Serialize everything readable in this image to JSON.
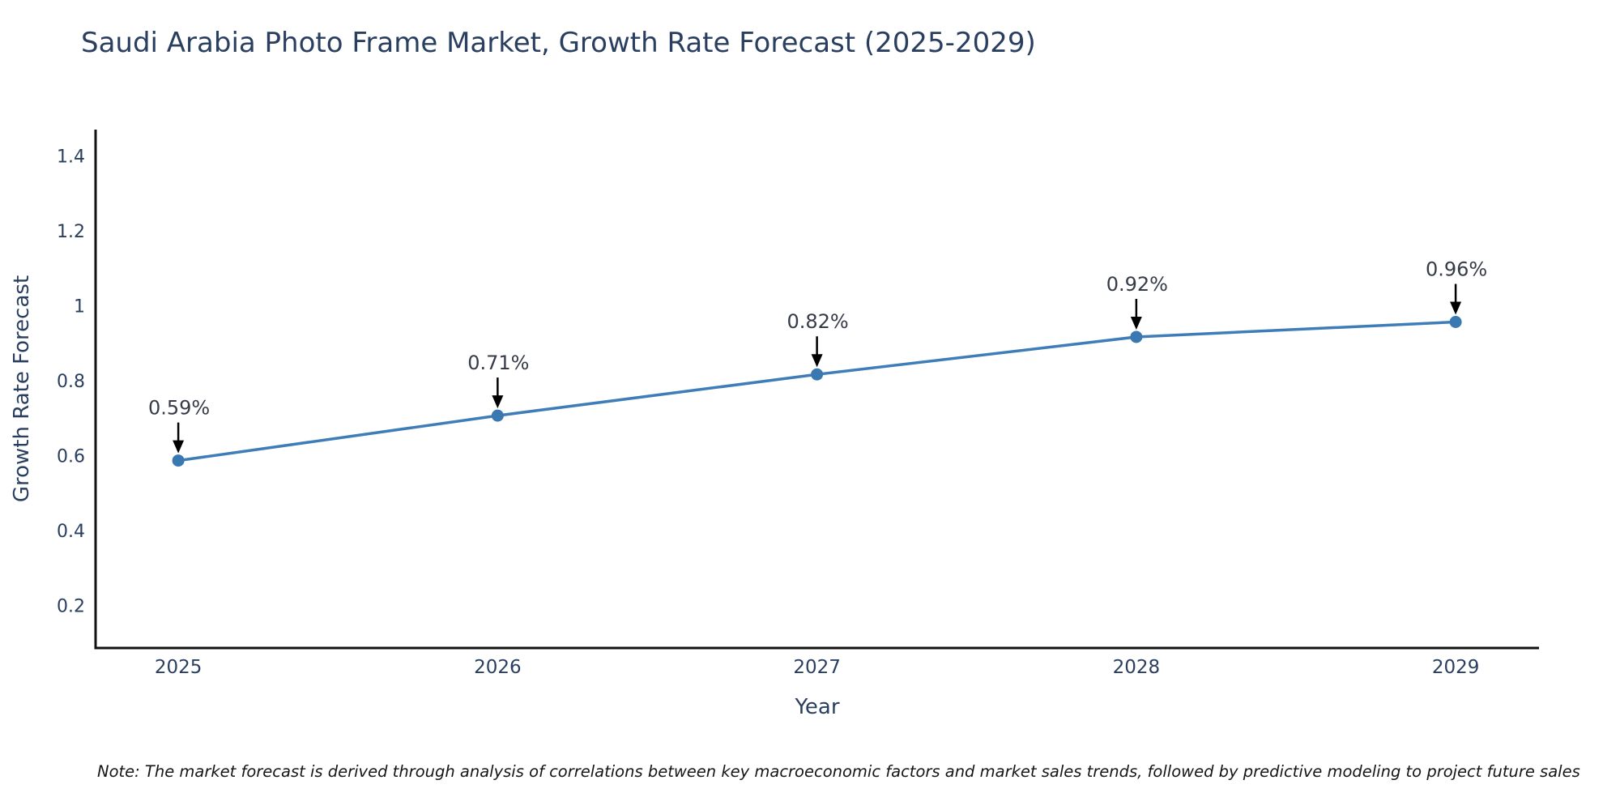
{
  "title": "Saudi Arabia Photo Frame Market, Growth Rate Forecast (2025-2029)",
  "note": "Note: The market forecast is derived through analysis of correlations between key macroeconomic factors and market sales trends, followed by predictive modeling to project future sales",
  "chart_data": {
    "type": "line",
    "title": "Saudi Arabia Photo Frame Market, Growth Rate Forecast (2025-2029)",
    "x": [
      2025,
      2026,
      2027,
      2028,
      2029
    ],
    "values": [
      0.59,
      0.71,
      0.82,
      0.92,
      0.96
    ],
    "point_labels": [
      "0.59%",
      "0.71%",
      "0.82%",
      "0.92%",
      "0.96%"
    ],
    "xlabel": "Year",
    "ylabel": "Growth Rate Forecast",
    "xtick_labels": [
      "2025",
      "2026",
      "2027",
      "2028",
      "2029"
    ],
    "yticks": [
      0.2,
      0.4,
      0.6,
      0.8,
      1,
      1.2,
      1.4
    ],
    "ytick_labels": [
      "0.2",
      "0.4",
      "0.6",
      "0.8",
      "1",
      "1.2",
      "1.4"
    ],
    "xlim": [
      2024.741,
      2029.261
    ],
    "ylim": [
      0.0897,
      1.4735
    ],
    "grid": false,
    "legend_position": "none",
    "colors": {
      "line": "#3f7db8",
      "marker": "#3a78b2",
      "annotation_text": "#353b47",
      "annotation_arrow": "#000000",
      "axis_line": "#111111",
      "tick_text": "#2a3f5f",
      "title_text": "#2a3f5f"
    }
  }
}
